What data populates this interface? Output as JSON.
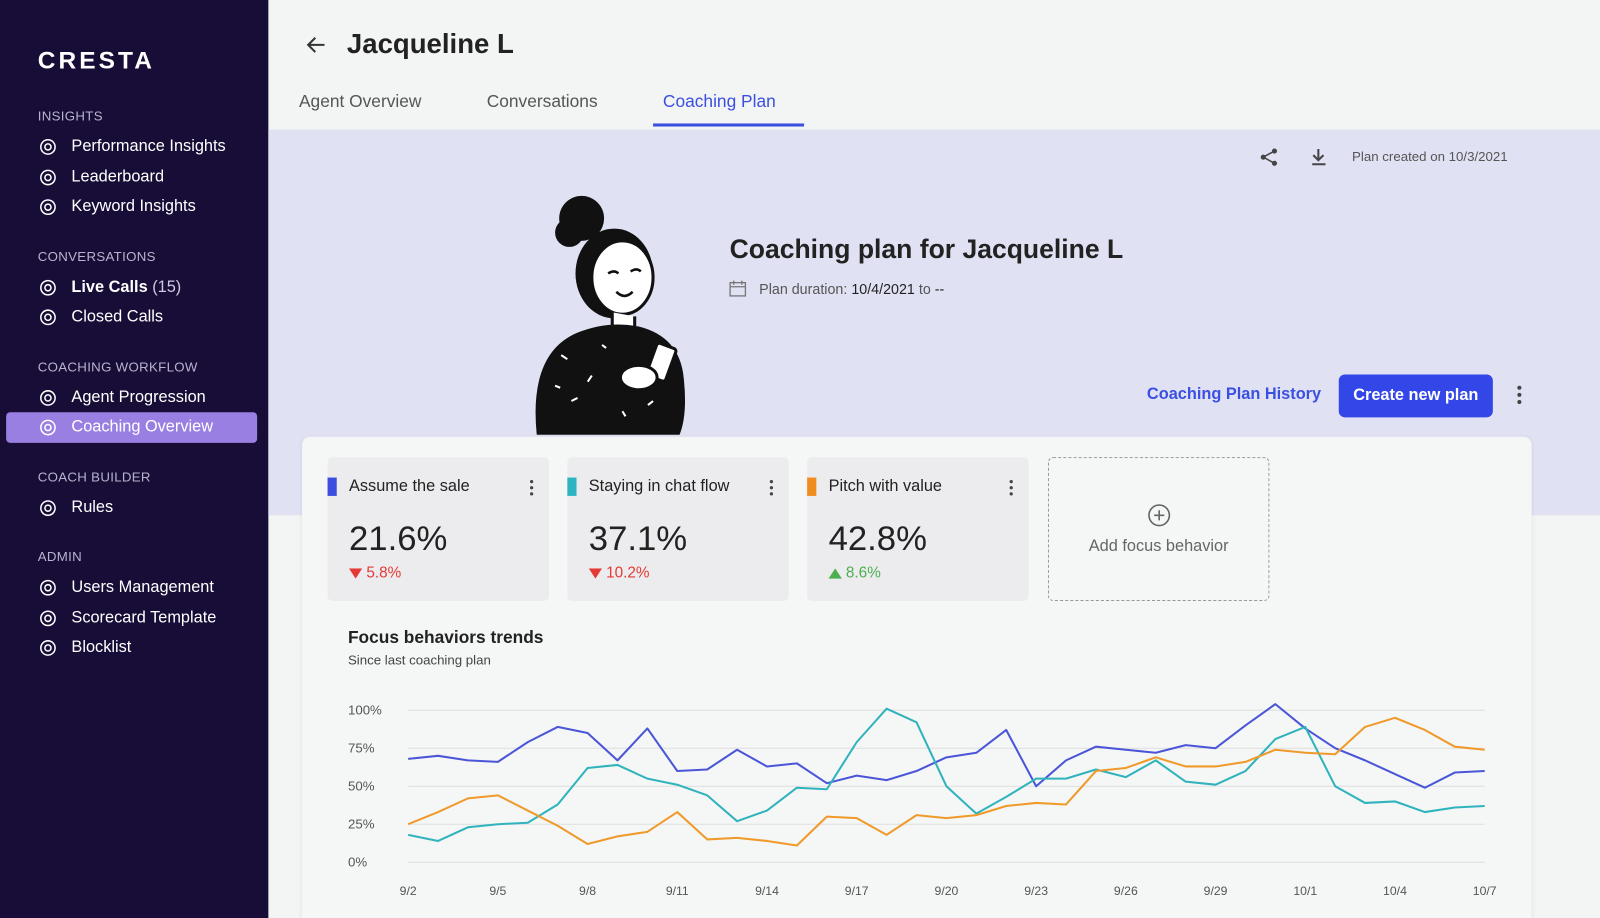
{
  "sidebar": {
    "logo": "CRESTA",
    "sections": [
      {
        "title": "INSIGHTS",
        "items": [
          {
            "label": "Performance Insights"
          },
          {
            "label": "Leaderboard"
          },
          {
            "label": "Keyword Insights"
          }
        ]
      },
      {
        "title": "CONVERSATIONS",
        "items": [
          {
            "label": "Live Calls",
            "count": "(15)"
          },
          {
            "label": "Closed Calls"
          }
        ]
      },
      {
        "title": "COACHING WORKFLOW",
        "items": [
          {
            "label": "Agent Progression"
          },
          {
            "label": "Coaching Overview",
            "active": true
          }
        ]
      },
      {
        "title": "COACH BUILDER",
        "items": [
          {
            "label": "Rules"
          }
        ]
      },
      {
        "title": "ADMIN",
        "items": [
          {
            "label": "Users Management"
          },
          {
            "label": "Scorecard Template"
          },
          {
            "label": "Blocklist"
          }
        ]
      }
    ]
  },
  "header": {
    "title": "Jacqueline L",
    "tabs": [
      {
        "label": "Agent Overview"
      },
      {
        "label": "Conversations"
      },
      {
        "label": "Coaching Plan",
        "active": true
      }
    ]
  },
  "plan": {
    "created": "Plan created on 10/3/2021",
    "title": "Coaching plan for Jacqueline L",
    "duration_label": "Plan duration:",
    "start": "10/4/2021",
    "to": "to",
    "end": "--",
    "history_button": "Coaching Plan History",
    "create_button": "Create new plan"
  },
  "metrics": [
    {
      "name": "Assume the sale",
      "value": "21.6%",
      "change": "5.8%",
      "direction": "down",
      "color": "#3c4ee0"
    },
    {
      "name": "Staying in chat flow",
      "value": "37.1%",
      "change": "10.2%",
      "direction": "down",
      "color": "#2db3c2"
    },
    {
      "name": "Pitch with value",
      "value": "42.8%",
      "change": "8.6%",
      "direction": "up",
      "color": "#f08c1e"
    }
  ],
  "add_focus": "Add focus behavior",
  "chart_data": {
    "type": "line",
    "title": "Focus behaviors trends",
    "subtitle": "Since last coaching plan",
    "categories": [
      "9/2",
      null,
      null,
      "9/5",
      null,
      null,
      "9/8",
      null,
      null,
      "9/11",
      null,
      null,
      "9/14",
      null,
      null,
      "9/17",
      null,
      null,
      "9/20",
      null,
      null,
      "9/23",
      null,
      null,
      "9/26",
      null,
      null,
      "9/29",
      null,
      null,
      "10/1",
      null,
      null,
      "10/4",
      null,
      null,
      "10/7"
    ],
    "series": [
      {
        "color": "#4a55d8",
        "values": [
          68,
          70,
          67,
          66,
          79,
          89,
          85,
          67,
          88,
          60,
          61,
          74,
          63,
          65,
          52,
          57,
          54,
          60,
          69,
          72,
          87,
          50,
          67,
          76,
          74,
          72,
          77,
          75,
          90,
          104,
          88,
          75,
          67,
          58,
          49,
          59,
          60
        ]
      },
      {
        "color": "#2fb3bd",
        "values": [
          18,
          14,
          23,
          25,
          26,
          38,
          62,
          64,
          55,
          51,
          44,
          27,
          34,
          49,
          48,
          79,
          101,
          92,
          50,
          32,
          43,
          55,
          55,
          61,
          56,
          67,
          53,
          51,
          60,
          81,
          89,
          50,
          39,
          40,
          33,
          36,
          37
        ]
      },
      {
        "color": "#ef9a2a",
        "values": [
          25,
          33,
          42,
          44,
          34,
          24,
          12,
          17,
          20,
          33,
          15,
          16,
          14,
          11,
          30,
          29,
          18,
          31,
          29,
          31,
          37,
          39,
          38,
          60,
          62,
          69,
          63,
          63,
          66,
          74,
          72,
          71,
          89,
          95,
          87,
          76,
          74
        ]
      }
    ],
    "ylim": [
      0,
      100
    ],
    "yticks": [
      {
        "value": 0,
        "label": "0%"
      },
      {
        "value": 25,
        "label": "25%"
      },
      {
        "value": 50,
        "label": "50%"
      },
      {
        "value": 75,
        "label": "75%"
      },
      {
        "value": 100,
        "label": "100%"
      }
    ],
    "grid": true
  }
}
